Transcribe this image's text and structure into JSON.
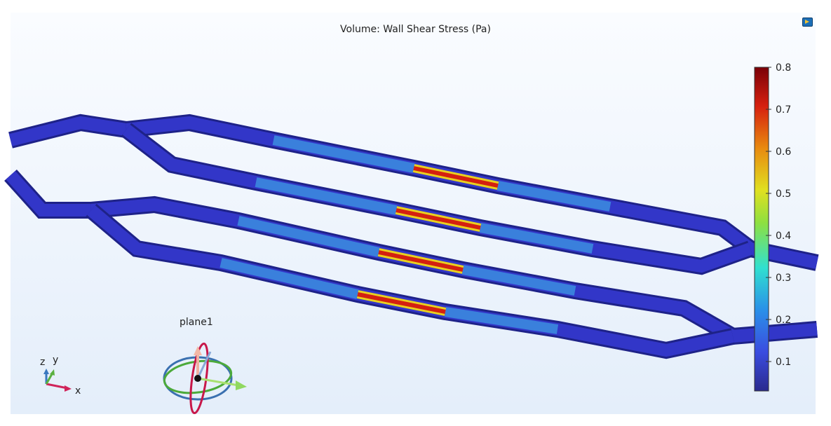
{
  "plot": {
    "title": "Volume: Wall Shear Stress (Pa)",
    "workplane_label": "plane1",
    "axis_triad": {
      "x": "x",
      "y": "y",
      "z": "z"
    }
  },
  "chart_data": {
    "type": "heatmap",
    "title": "Volume: Wall Shear Stress (Pa)",
    "colorbar": {
      "colormap": "rainbow",
      "range": [
        0.03,
        0.8
      ],
      "ticks": [
        "0.1",
        "0.2",
        "0.3",
        "0.4",
        "0.5",
        "0.6",
        "0.7",
        "0.8"
      ],
      "colors": [
        "#2a2a8e",
        "#3a4ce0",
        "#2aa0e8",
        "#30e0d0",
        "#8ee040",
        "#e0e020",
        "#e88a10",
        "#d62010",
        "#7a0008"
      ]
    },
    "note_values": {
      "channel_base": 0.05,
      "narrow_section_max": 0.8
    }
  }
}
